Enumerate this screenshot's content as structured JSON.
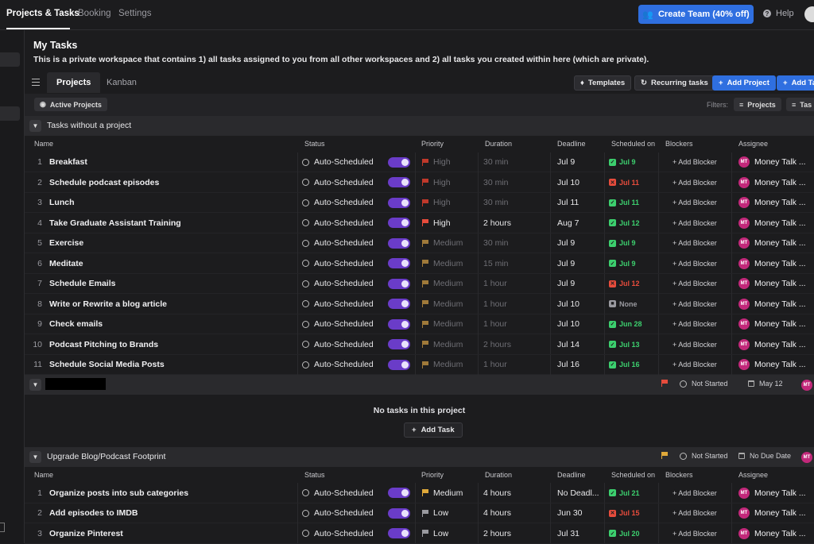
{
  "topnav": {
    "tabs": [
      "Projects & Tasks",
      "Booking",
      "Settings"
    ],
    "create_team": "Create Team (40% off)",
    "help": "Help"
  },
  "page": {
    "title": "My Tasks",
    "subtitle": "This is a private workspace that contains 1) all tasks assigned to you from all other workspaces and 2) all tasks you created within here (which are private)."
  },
  "view_tabs": [
    "Projects",
    "Kanban"
  ],
  "toolbar": {
    "templates": "Templates",
    "recurring": "Recurring tasks",
    "add_project": "Add Project",
    "add_task": "Add Ta"
  },
  "filterbar": {
    "active_projects": "Active Projects",
    "filters_label": "Filters:",
    "projects_chip": "Projects",
    "tasks_chip": "Tas"
  },
  "columns": [
    "Name",
    "Status",
    "Priority",
    "Duration",
    "Deadline",
    "Scheduled on",
    "Blockers",
    "Assignee"
  ],
  "group1": {
    "name": "Tasks without a project",
    "rows": [
      {
        "num": "1",
        "name": "Breakfast",
        "status": "Auto-Scheduled",
        "priority": "High",
        "priority_color": "#c0392b",
        "priority_dim": true,
        "duration": "30 min",
        "duration_dim": true,
        "deadline": "Jul 9",
        "sched": "Jul 9",
        "sched_type": "ok",
        "blockers": "+ Add Blocker",
        "assignee": "Money Talk ..."
      },
      {
        "num": "2",
        "name": "Schedule podcast episodes",
        "status": "Auto-Scheduled",
        "priority": "High",
        "priority_color": "#c0392b",
        "priority_dim": true,
        "duration": "30 min",
        "duration_dim": true,
        "deadline": "Jul 10",
        "sched": "Jul 11",
        "sched_type": "late",
        "blockers": "+ Add Blocker",
        "assignee": "Money Talk ..."
      },
      {
        "num": "3",
        "name": "Lunch",
        "status": "Auto-Scheduled",
        "priority": "High",
        "priority_color": "#c0392b",
        "priority_dim": true,
        "duration": "30 min",
        "duration_dim": true,
        "deadline": "Jul 11",
        "sched": "Jul 11",
        "sched_type": "ok",
        "blockers": "+ Add Blocker",
        "assignee": "Money Talk ..."
      },
      {
        "num": "4",
        "name": "Take Graduate Assistant Training",
        "status": "Auto-Scheduled",
        "priority": "High",
        "priority_color": "#e74c3c",
        "priority_dim": false,
        "duration": "2 hours",
        "duration_dim": false,
        "deadline": "Aug 7",
        "sched": "Jul 12",
        "sched_type": "ok",
        "blockers": "+ Add Blocker",
        "assignee": "Money Talk ..."
      },
      {
        "num": "5",
        "name": "Exercise",
        "status": "Auto-Scheduled",
        "priority": "Medium",
        "priority_color": "#a07a3a",
        "priority_dim": true,
        "duration": "30 min",
        "duration_dim": true,
        "deadline": "Jul 9",
        "sched": "Jul 9",
        "sched_type": "ok",
        "blockers": "+ Add Blocker",
        "assignee": "Money Talk ..."
      },
      {
        "num": "6",
        "name": "Meditate",
        "status": "Auto-Scheduled",
        "priority": "Medium",
        "priority_color": "#a07a3a",
        "priority_dim": true,
        "duration": "15 min",
        "duration_dim": true,
        "deadline": "Jul 9",
        "sched": "Jul 9",
        "sched_type": "ok",
        "blockers": "+ Add Blocker",
        "assignee": "Money Talk ..."
      },
      {
        "num": "7",
        "name": "Schedule Emails",
        "status": "Auto-Scheduled",
        "priority": "Medium",
        "priority_color": "#a07a3a",
        "priority_dim": true,
        "duration": "1 hour",
        "duration_dim": true,
        "deadline": "Jul 9",
        "sched": "Jul 12",
        "sched_type": "late",
        "blockers": "+ Add Blocker",
        "assignee": "Money Talk ..."
      },
      {
        "num": "8",
        "name": "Write or Rewrite a blog article",
        "status": "Auto-Scheduled",
        "priority": "Medium",
        "priority_color": "#a07a3a",
        "priority_dim": true,
        "duration": "1 hour",
        "duration_dim": true,
        "deadline": "Jul 10",
        "sched": "None",
        "sched_type": "none",
        "blockers": "+ Add Blocker",
        "assignee": "Money Talk ..."
      },
      {
        "num": "9",
        "name": "Check emails",
        "status": "Auto-Scheduled",
        "priority": "Medium",
        "priority_color": "#a07a3a",
        "priority_dim": true,
        "duration": "1 hour",
        "duration_dim": true,
        "deadline": "Jul 10",
        "sched": "Jun 28",
        "sched_type": "ok",
        "blockers": "+ Add Blocker",
        "assignee": "Money Talk ..."
      },
      {
        "num": "10",
        "name": "Podcast Pitching to Brands",
        "status": "Auto-Scheduled",
        "priority": "Medium",
        "priority_color": "#a07a3a",
        "priority_dim": true,
        "duration": "2 hours",
        "duration_dim": true,
        "deadline": "Jul 14",
        "sched": "Jul 13",
        "sched_type": "ok",
        "blockers": "+ Add Blocker",
        "assignee": "Money Talk ..."
      },
      {
        "num": "11",
        "name": "Schedule Social Media Posts",
        "status": "Auto-Scheduled",
        "priority": "Medium",
        "priority_color": "#a07a3a",
        "priority_dim": true,
        "duration": "1 hour",
        "duration_dim": true,
        "deadline": "Jul 16",
        "sched": "Jul 16",
        "sched_type": "ok",
        "blockers": "+ Add Blocker",
        "assignee": "Money Talk ..."
      }
    ]
  },
  "group2": {
    "status": "Not Started",
    "date": "May 12",
    "empty_text": "No tasks in this project",
    "add_task": "Add Task",
    "avatar": "MT"
  },
  "group3": {
    "name": "Upgrade Blog/Podcast Footprint",
    "status": "Not Started",
    "date": "No Due Date",
    "avatar": "MT",
    "rows": [
      {
        "num": "1",
        "name": "Organize posts into sub categories",
        "status": "Auto-Scheduled",
        "priority": "Medium",
        "priority_color": "#e0a93a",
        "priority_dim": false,
        "duration": "4 hours",
        "duration_dim": false,
        "deadline": "No Deadl...",
        "sched": "Jul 21",
        "sched_type": "ok",
        "blockers": "+ Add Blocker",
        "assignee": "Money Talk ..."
      },
      {
        "num": "2",
        "name": "Add episodes to IMDB",
        "status": "Auto-Scheduled",
        "priority": "Low",
        "priority_color": "#9a9aa0",
        "priority_dim": false,
        "duration": "4 hours",
        "duration_dim": false,
        "deadline": "Jun 30",
        "sched": "Jul 15",
        "sched_type": "late",
        "blockers": "+ Add Blocker",
        "assignee": "Money Talk ..."
      },
      {
        "num": "3",
        "name": "Organize Pinterest",
        "status": "Auto-Scheduled",
        "priority": "Low",
        "priority_color": "#9a9aa0",
        "priority_dim": false,
        "duration": "2 hours",
        "duration_dim": false,
        "deadline": "Jul 31",
        "sched": "Jul 20",
        "sched_type": "ok",
        "blockers": "+ Add Blocker",
        "assignee": "Money Talk ..."
      }
    ]
  },
  "assignee_initials": "MT",
  "colors": {
    "accent": "#2f6fe0",
    "toggle": "#6a3cc8",
    "ok": "#3ccf6e",
    "late": "#e74c3c",
    "avatar": "#c2287a"
  }
}
